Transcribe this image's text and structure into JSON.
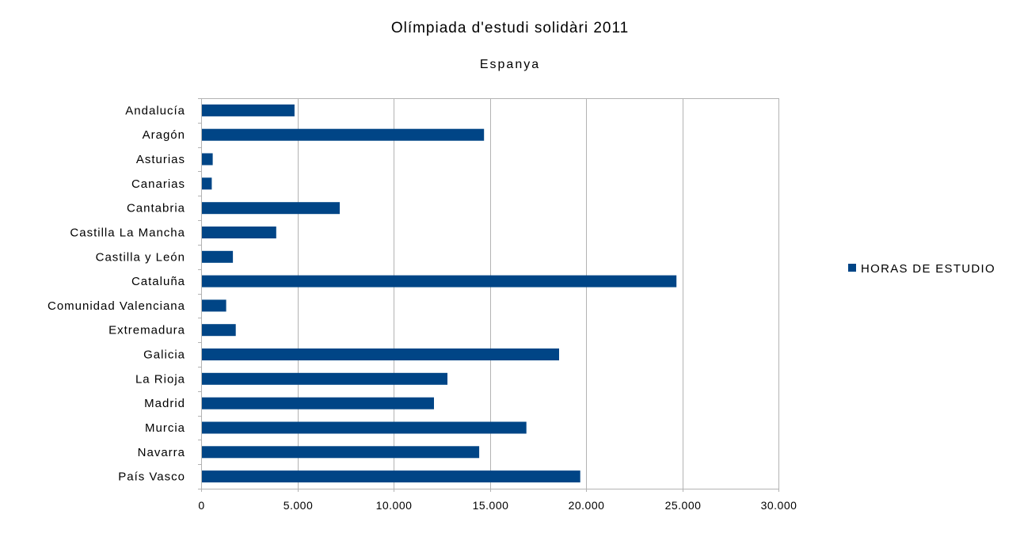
{
  "chart_data": {
    "type": "bar",
    "orientation": "horizontal",
    "title": "Olímpiada d'estudi solidàri 2011",
    "subtitle": "Espanya",
    "categories": [
      "Andalucía",
      "Aragón",
      "Asturias",
      "Canarias",
      "Cantabria",
      "Castilla La Mancha",
      "Castilla y León",
      "Cataluña",
      "Comunidad Valenciana",
      "Extremadura",
      "Galicia",
      "La Rioja",
      "Madrid",
      "Murcia",
      "Navarra",
      "País Vasco"
    ],
    "series": [
      {
        "name": "HORAS DE ESTUDIO",
        "color": "#004586",
        "values": [
          4850,
          14700,
          600,
          550,
          7200,
          3900,
          1650,
          24700,
          1300,
          1800,
          18600,
          12800,
          12100,
          16900,
          14450,
          19700
        ]
      }
    ],
    "xlim": [
      0,
      30000
    ],
    "xticks": [
      0,
      5000,
      10000,
      15000,
      20000,
      25000,
      30000
    ],
    "xtick_labels": [
      "0",
      "5.000",
      "10.000",
      "15.000",
      "20.000",
      "25.000",
      "30.000"
    ],
    "grid": true,
    "legend_position": "right"
  }
}
